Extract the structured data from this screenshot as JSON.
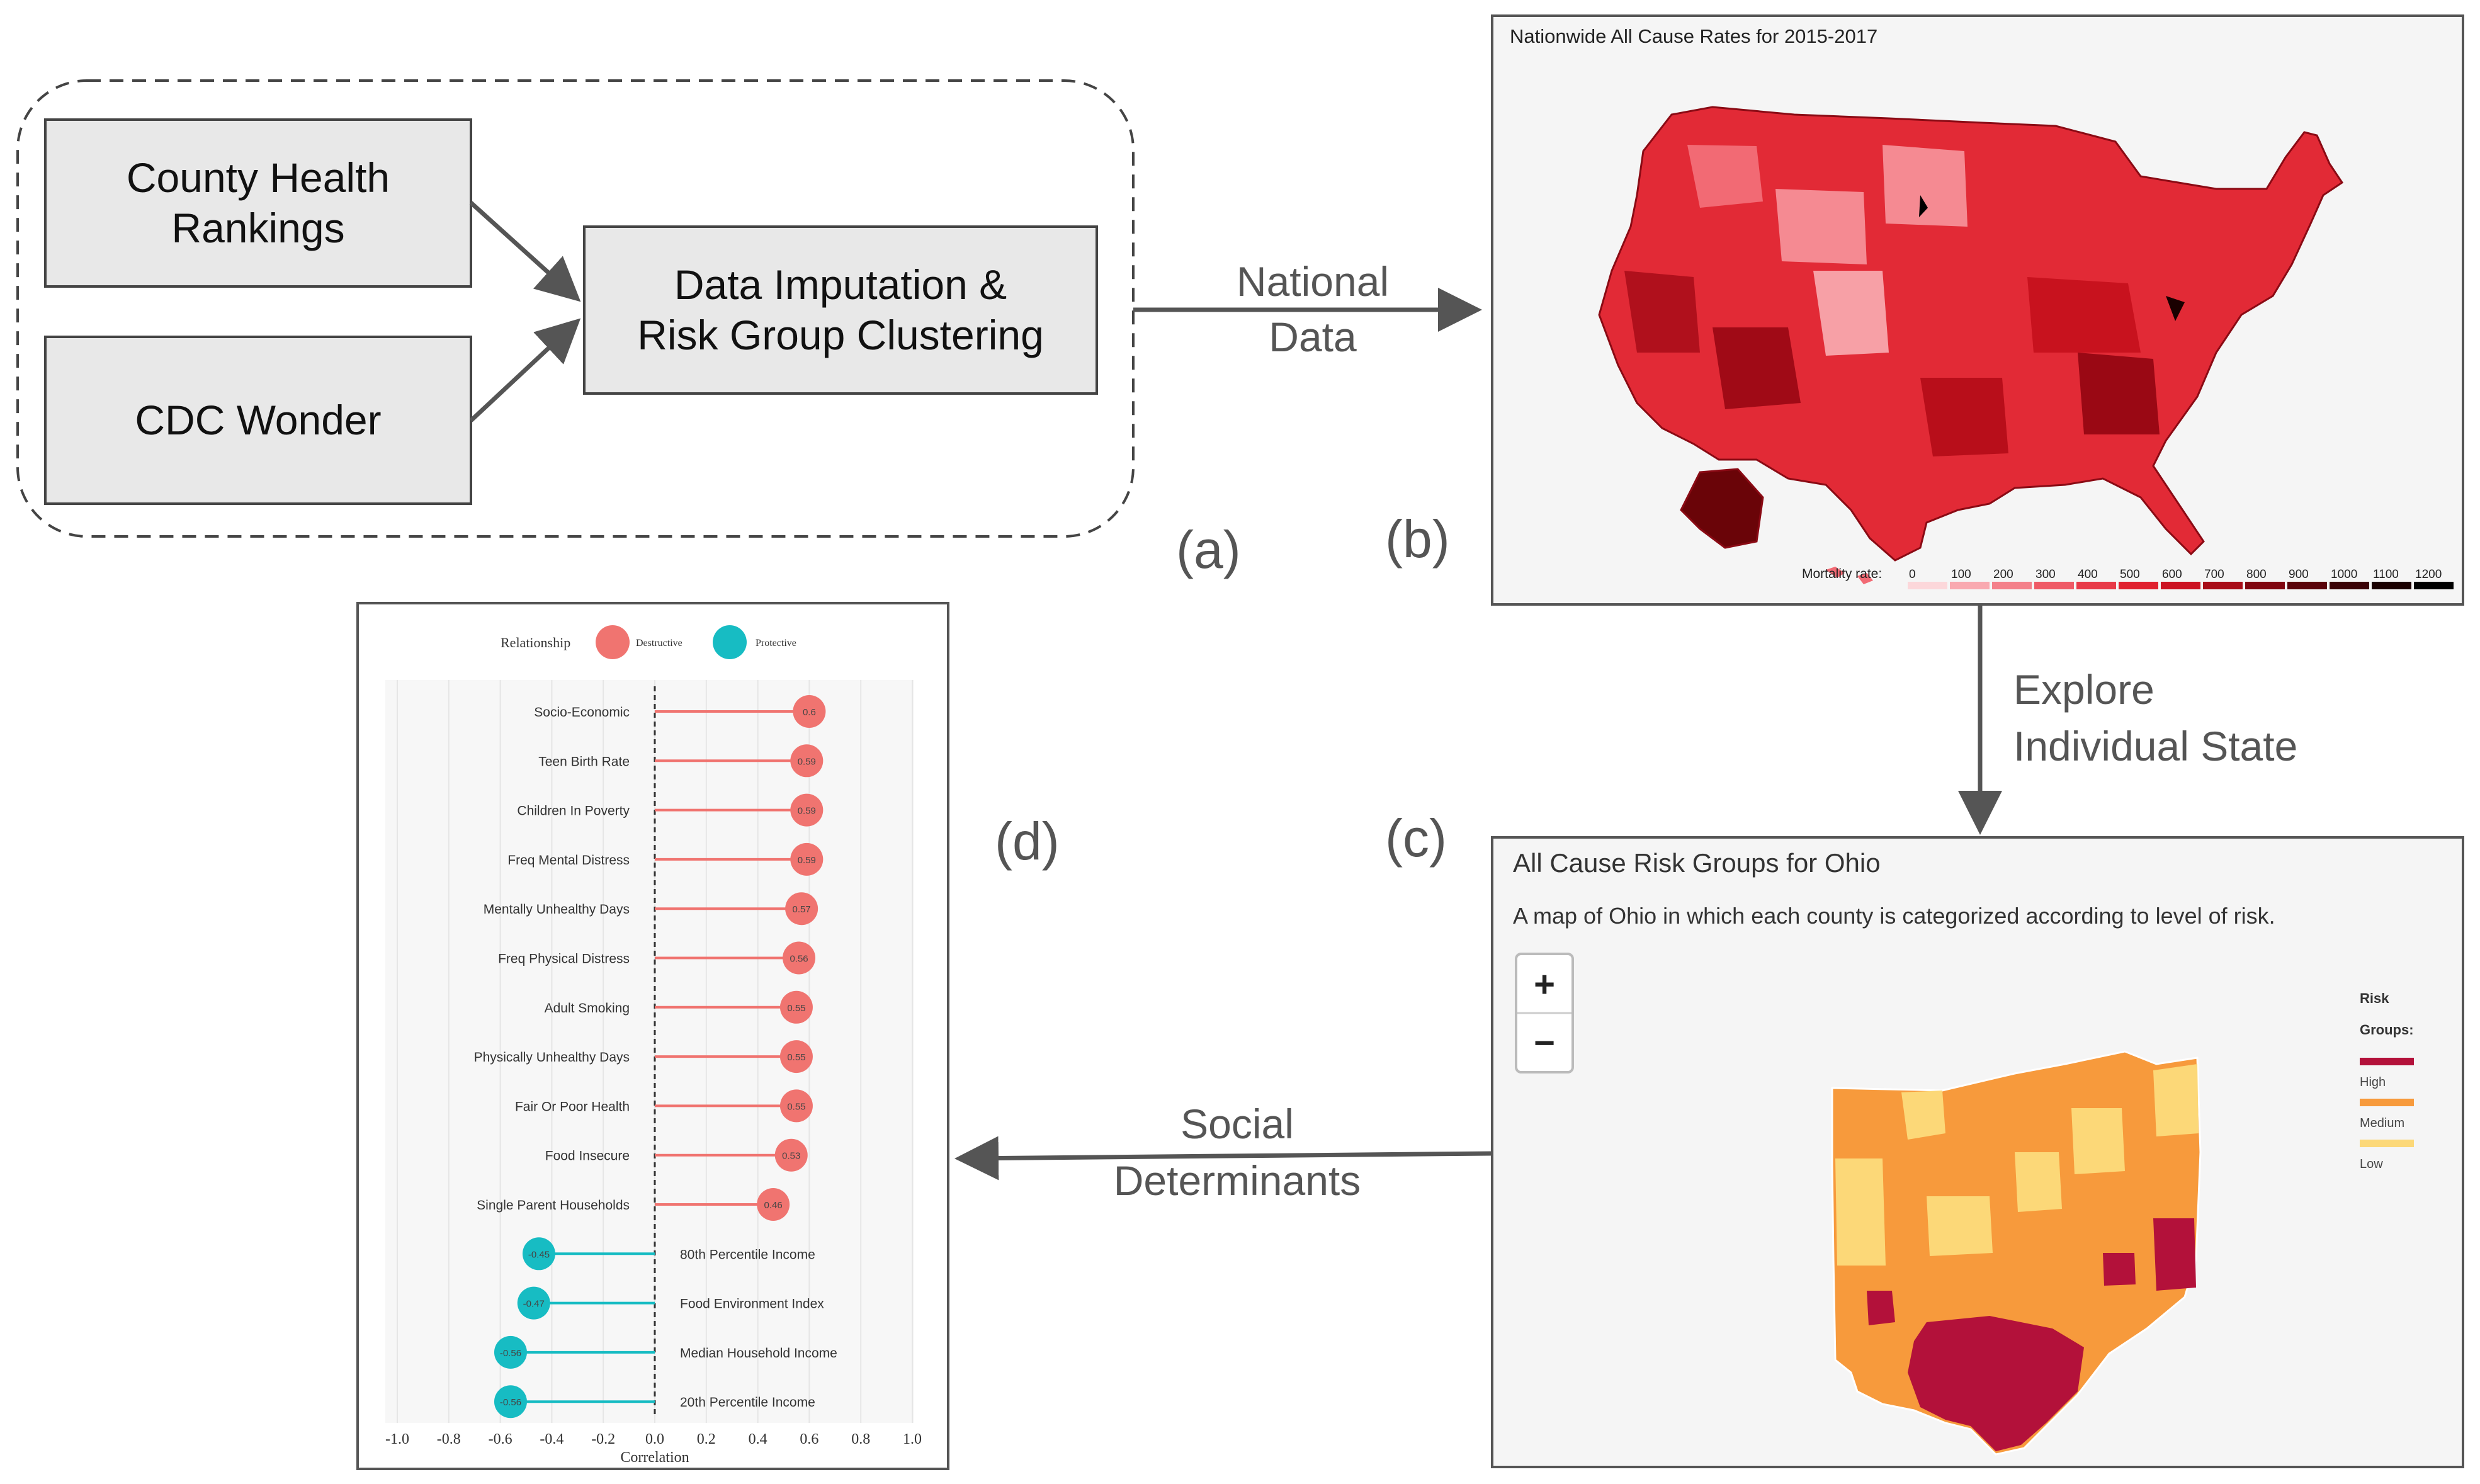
{
  "pipeline": {
    "source1": [
      "County Health",
      "Rankings"
    ],
    "source2": "CDC Wonder",
    "process": [
      "Data Imputation &",
      "Risk Group Clustering"
    ]
  },
  "arrows": {
    "national": [
      "National",
      "Data"
    ],
    "explore": [
      "Explore",
      "Individual State"
    ],
    "social": [
      "Social",
      "Determinants"
    ]
  },
  "panel_labels": {
    "a": "(a)",
    "b": "(b)",
    "c": "(c)",
    "d": "(d)"
  },
  "national_map": {
    "title": "Nationwide All Cause Rates for 2015-2017",
    "legend_label": "Mortality rate:",
    "legend_ticks": [
      "0",
      "100",
      "200",
      "300",
      "400",
      "500",
      "600",
      "700",
      "800",
      "900",
      "1000",
      "1100",
      "1200"
    ],
    "legend_colors": [
      "#fcd7da",
      "#f9a9b0",
      "#f4808a",
      "#ef5a66",
      "#e83a48",
      "#e0202e",
      "#cc1222",
      "#a80c18",
      "#800610",
      "#5a030a",
      "#3a0206",
      "#1a0000",
      "#000000"
    ]
  },
  "ohio_map": {
    "title": "All Cause Risk Groups for Ohio",
    "subtitle": "A map of Ohio in which each county is categorized according to level of risk.",
    "zoom_in": "+",
    "zoom_out": "−",
    "legend_title": [
      "Risk",
      "Groups:"
    ],
    "legend": [
      {
        "label": "High",
        "color": "#b3113a"
      },
      {
        "label": "Medium",
        "color": "#f79a3c"
      },
      {
        "label": "Low",
        "color": "#fcd878"
      }
    ]
  },
  "chart_data": {
    "type": "lollipop",
    "legend_title": "Relationship",
    "legend": [
      {
        "label": "Destructive",
        "color": "#f07470"
      },
      {
        "label": "Protective",
        "color": "#17bcc3"
      }
    ],
    "xlabel": "Correlation",
    "xlim": [
      -1.0,
      1.0
    ],
    "xticks": [
      "-1.0",
      "-0.8",
      "-0.6",
      "-0.4",
      "-0.2",
      "0.0",
      "0.2",
      "0.4",
      "0.6",
      "0.8",
      "1.0"
    ],
    "items": [
      {
        "label": "Socio-Economic",
        "value": 0.6,
        "text": "0.6",
        "group": "Destructive"
      },
      {
        "label": "Teen Birth Rate",
        "value": 0.59,
        "text": "0.59",
        "group": "Destructive"
      },
      {
        "label": "Children In Poverty",
        "value": 0.59,
        "text": "0.59",
        "group": "Destructive"
      },
      {
        "label": "Freq Mental Distress",
        "value": 0.59,
        "text": "0.59",
        "group": "Destructive"
      },
      {
        "label": "Mentally Unhealthy Days",
        "value": 0.57,
        "text": "0.57",
        "group": "Destructive"
      },
      {
        "label": "Freq Physical Distress",
        "value": 0.56,
        "text": "0.56",
        "group": "Destructive"
      },
      {
        "label": "Adult Smoking",
        "value": 0.55,
        "text": "0.55",
        "group": "Destructive"
      },
      {
        "label": "Physically Unhealthy Days",
        "value": 0.55,
        "text": "0.55",
        "group": "Destructive"
      },
      {
        "label": "Fair Or Poor Health",
        "value": 0.55,
        "text": "0.55",
        "group": "Destructive"
      },
      {
        "label": "Food Insecure",
        "value": 0.53,
        "text": "0.53",
        "group": "Destructive"
      },
      {
        "label": "Single Parent Households",
        "value": 0.46,
        "text": "0.46",
        "group": "Destructive"
      },
      {
        "label": "80th Percentile Income",
        "value": -0.45,
        "text": "-0.45",
        "group": "Protective"
      },
      {
        "label": "Food Environment Index",
        "value": -0.47,
        "text": "-0.47",
        "group": "Protective"
      },
      {
        "label": "Median Household Income",
        "value": -0.56,
        "text": "-0.56",
        "group": "Protective"
      },
      {
        "label": "20th Percentile Income",
        "value": -0.56,
        "text": "-0.56",
        "group": "Protective"
      }
    ]
  }
}
